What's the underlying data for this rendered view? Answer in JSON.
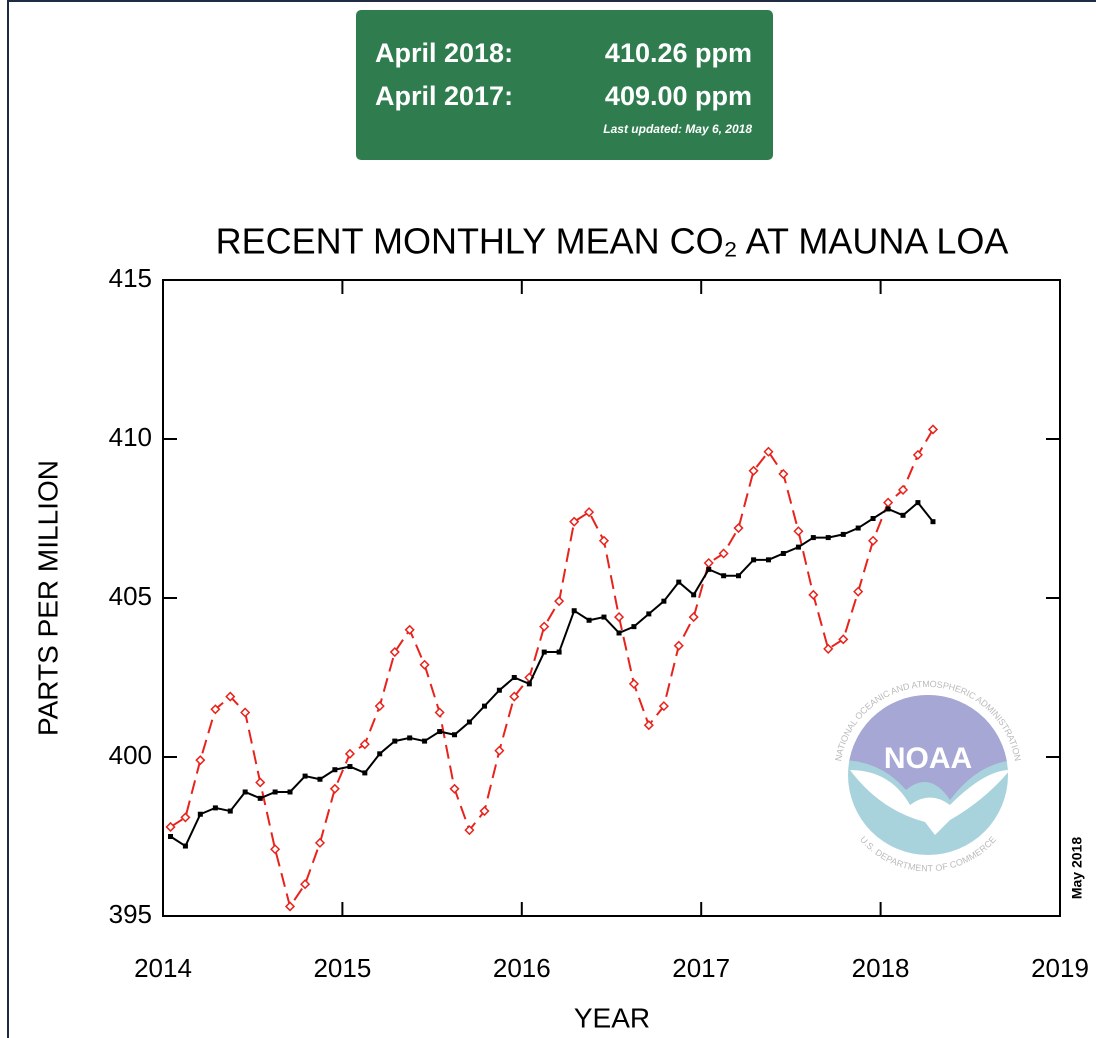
{
  "summary": {
    "rows": [
      [
        "April 2018:",
        "410.26 ppm"
      ],
      [
        "April 2017:",
        "409.00 ppm"
      ]
    ],
    "updated": "Last updated: May 6, 2018"
  },
  "logo": {
    "name": "NOAA",
    "top_text": "NATIONAL OCEANIC AND ATMOSPHERIC ADMINISTRATION",
    "bottom_text": "U.S. DEPARTMENT OF COMMERCE"
  },
  "chart_data": {
    "type": "line",
    "title": "RECENT MONTHLY MEAN CO₂ AT MAUNA LOA",
    "x_label": "YEAR",
    "y_label": "PARTS PER MILLION",
    "annotation": "May 2018",
    "xlim": [
      2014,
      2019
    ],
    "ylim": [
      395,
      415
    ],
    "xticks": [
      2014,
      2015,
      2016,
      2017,
      2018,
      2019
    ],
    "yticks": [
      395,
      400,
      405,
      410,
      415
    ],
    "x": [
      2014.042,
      2014.125,
      2014.208,
      2014.292,
      2014.375,
      2014.458,
      2014.542,
      2014.625,
      2014.708,
      2014.792,
      2014.875,
      2014.958,
      2015.042,
      2015.125,
      2015.208,
      2015.292,
      2015.375,
      2015.458,
      2015.542,
      2015.625,
      2015.708,
      2015.792,
      2015.875,
      2015.958,
      2016.042,
      2016.125,
      2016.208,
      2016.292,
      2016.375,
      2016.458,
      2016.542,
      2016.625,
      2016.708,
      2016.792,
      2016.875,
      2016.958,
      2017.042,
      2017.125,
      2017.208,
      2017.292,
      2017.375,
      2017.458,
      2017.542,
      2017.625,
      2017.708,
      2017.792,
      2017.875,
      2017.958,
      2018.042,
      2018.125,
      2018.208,
      2018.292
    ],
    "series": [
      {
        "color": "#e8231c",
        "dashed": true,
        "marker": "diamond",
        "values": [
          397.8,
          398.1,
          399.9,
          401.5,
          401.9,
          401.4,
          399.2,
          397.1,
          395.3,
          396.0,
          397.3,
          399.0,
          400.1,
          400.4,
          401.6,
          403.3,
          404.0,
          402.9,
          401.4,
          399.0,
          397.7,
          398.3,
          400.2,
          401.9,
          402.5,
          404.1,
          404.9,
          407.4,
          407.7,
          406.8,
          404.4,
          402.3,
          401.0,
          401.6,
          403.5,
          404.4,
          406.1,
          406.4,
          407.2,
          409.0,
          409.6,
          408.9,
          407.1,
          405.1,
          403.4,
          403.7,
          405.2,
          406.8,
          408.0,
          408.4,
          409.5,
          410.3
        ]
      },
      {
        "color": "#000000",
        "dashed": false,
        "marker": "square",
        "values": [
          397.5,
          397.2,
          398.2,
          398.4,
          398.3,
          398.9,
          398.7,
          398.9,
          398.9,
          399.4,
          399.3,
          399.6,
          399.7,
          399.5,
          400.1,
          400.5,
          400.6,
          400.5,
          400.8,
          400.7,
          401.1,
          401.6,
          402.1,
          402.5,
          402.3,
          403.3,
          403.3,
          404.6,
          404.3,
          404.4,
          403.9,
          404.1,
          404.5,
          404.9,
          405.5,
          405.1,
          405.9,
          405.7,
          405.7,
          406.2,
          406.2,
          406.4,
          406.6,
          406.9,
          406.9,
          407.0,
          407.2,
          407.5,
          407.8,
          407.6,
          408.0,
          407.4
        ]
      }
    ]
  }
}
